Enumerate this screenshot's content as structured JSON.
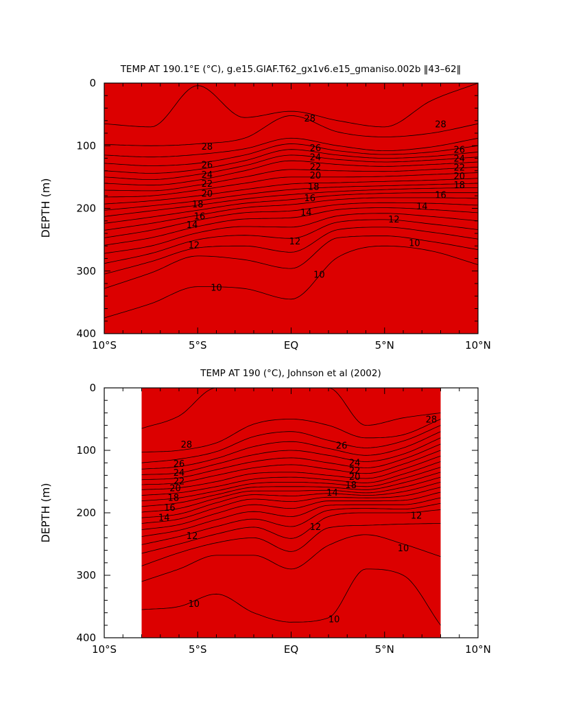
{
  "chart_data": [
    {
      "type": "contour",
      "title": "TEMP AT 190.1°E (°C), g.e15.GIAF.T62_gx1v6.e15_gmaniso.002b ‖43–62‖",
      "xlabel": "",
      "ylabel": "DEPTH (m)",
      "x_ticks": [
        "10°S",
        "5°S",
        "EQ",
        "5°N",
        "10°N"
      ],
      "y_ticks": [
        "0",
        "100",
        "200",
        "300",
        "400"
      ],
      "xlim": [
        -10,
        10
      ],
      "ylim": [
        400,
        0
      ],
      "y_reversed": true,
      "data_extent": [
        -10,
        10
      ],
      "x": [
        -10,
        -7.5,
        -5,
        -2.5,
        0,
        2.5,
        5,
        7.5,
        10
      ],
      "contour_levels": [
        29,
        28,
        27,
        26,
        25,
        24,
        23,
        22,
        21,
        20,
        19,
        18,
        17,
        16,
        15,
        14,
        13,
        12,
        11,
        10,
        9
      ],
      "isotherm_depths": {
        "29": [
          65,
          70,
          4,
          55,
          45,
          60,
          70,
          28,
          0
        ],
        "28": [
          98,
          100,
          97,
          88,
          52,
          78,
          86,
          80,
          65
        ],
        "27": [
          115,
          118,
          114,
          105,
          88,
          100,
          108,
          102,
          88
        ],
        "26": [
          128,
          132,
          128,
          115,
          97,
          108,
          114,
          110,
          100
        ],
        "25": [
          140,
          144,
          138,
          124,
          106,
          115,
          120,
          117,
          110
        ],
        "24": [
          150,
          154,
          146,
          132,
          115,
          122,
          126,
          123,
          118
        ],
        "23": [
          160,
          163,
          155,
          140,
          124,
          130,
          133,
          130,
          126
        ],
        "22": [
          171,
          172,
          163,
          150,
          138,
          140,
          141,
          138,
          134
        ],
        "21": [
          182,
          180,
          171,
          160,
          150,
          150,
          149,
          146,
          143
        ],
        "20": [
          193,
          188,
          180,
          170,
          161,
          159,
          157,
          155,
          152
        ],
        "19": [
          203,
          196,
          188,
          178,
          170,
          166,
          164,
          162,
          160
        ],
        "18": [
          213,
          204,
          195,
          185,
          178,
          173,
          170,
          168,
          167
        ],
        "17": [
          224,
          214,
          203,
          192,
          186,
          179,
          176,
          175,
          175
        ],
        "16": [
          235,
          224,
          211,
          199,
          194,
          186,
          183,
          183,
          184
        ],
        "15": [
          247,
          235,
          219,
          207,
          204,
          194,
          191,
          192,
          195
        ],
        "14": [
          259,
          247,
          229,
          217,
          215,
          202,
          199,
          202,
          207
        ],
        "13": [
          272,
          260,
          239,
          229,
          230,
          212,
          208,
          213,
          220
        ],
        "12": [
          288,
          272,
          250,
          243,
          248,
          222,
          218,
          225,
          234
        ],
        "11": [
          305,
          285,
          263,
          260,
          270,
          234,
          230,
          238,
          249
        ],
        "10": [
          328,
          303,
          276,
          282,
          296,
          247,
          244,
          253,
          266
        ],
        "9": [
          375,
          352,
          325,
          328,
          345,
          278,
          260,
          268,
          290
        ]
      },
      "labels": [
        {
          "text": "28",
          "x": 1.0,
          "y": 56
        },
        {
          "text": "28",
          "x": 8.0,
          "y": 65
        },
        {
          "text": "28",
          "x": -4.5,
          "y": 101
        },
        {
          "text": "26",
          "x": 1.3,
          "y": 103
        },
        {
          "text": "26",
          "x": 9.0,
          "y": 106
        },
        {
          "text": "26",
          "x": -4.5,
          "y": 130
        },
        {
          "text": "24",
          "x": 1.3,
          "y": 118
        },
        {
          "text": "24",
          "x": 9.0,
          "y": 120
        },
        {
          "text": "24",
          "x": -4.5,
          "y": 146
        },
        {
          "text": "22",
          "x": 1.3,
          "y": 133
        },
        {
          "text": "22",
          "x": 9.0,
          "y": 134
        },
        {
          "text": "22",
          "x": -4.5,
          "y": 160
        },
        {
          "text": "20",
          "x": 1.3,
          "y": 147
        },
        {
          "text": "20",
          "x": 9.0,
          "y": 148
        },
        {
          "text": "20",
          "x": -4.5,
          "y": 176
        },
        {
          "text": "18",
          "x": 1.2,
          "y": 165
        },
        {
          "text": "18",
          "x": 9.0,
          "y": 162
        },
        {
          "text": "18",
          "x": -5.0,
          "y": 193
        },
        {
          "text": "16",
          "x": 1.0,
          "y": 183
        },
        {
          "text": "16",
          "x": 8.0,
          "y": 178
        },
        {
          "text": "16",
          "x": -4.9,
          "y": 212
        },
        {
          "text": "14",
          "x": 0.8,
          "y": 206
        },
        {
          "text": "14",
          "x": 7.0,
          "y": 196
        },
        {
          "text": "14",
          "x": -5.3,
          "y": 226
        },
        {
          "text": "12",
          "x": 0.2,
          "y": 252
        },
        {
          "text": "12",
          "x": 5.5,
          "y": 217
        },
        {
          "text": "12",
          "x": -5.2,
          "y": 258
        },
        {
          "text": "10",
          "x": 1.5,
          "y": 305
        },
        {
          "text": "10",
          "x": 6.6,
          "y": 255
        },
        {
          "text": "10",
          "x": -4.0,
          "y": 326
        }
      ]
    },
    {
      "type": "contour",
      "title": "TEMP AT 190 (°C), Johnson et al (2002)",
      "xlabel": "",
      "ylabel": "DEPTH (m)",
      "x_ticks": [
        "10°S",
        "5°S",
        "EQ",
        "5°N",
        "10°N"
      ],
      "y_ticks": [
        "0",
        "100",
        "200",
        "300",
        "400"
      ],
      "xlim": [
        -10,
        10
      ],
      "ylim": [
        400,
        0
      ],
      "y_reversed": true,
      "data_extent": [
        -8,
        8
      ],
      "x": [
        -8,
        -6,
        -4,
        -2,
        0,
        2,
        4,
        6,
        8
      ],
      "contour_levels": [
        29,
        28,
        27,
        26,
        25,
        24,
        23,
        22,
        21,
        20,
        19,
        18,
        17,
        16,
        15,
        14,
        13,
        12,
        11,
        10,
        9
      ],
      "isotherm_depths": {
        "29": [
          65,
          45,
          0,
          0,
          0,
          0,
          60,
          48,
          40
        ],
        "28": [
          103,
          100,
          88,
          58,
          50,
          60,
          80,
          75,
          50
        ],
        "27": [
          120,
          114,
          102,
          78,
          70,
          84,
          96,
          85,
          60
        ],
        "26": [
          130,
          126,
          113,
          94,
          86,
          97,
          108,
          96,
          70
        ],
        "25": [
          139,
          136,
          122,
          107,
          100,
          108,
          118,
          106,
          80
        ],
        "24": [
          147,
          144,
          131,
          118,
          112,
          120,
          128,
          114,
          90
        ],
        "23": [
          155,
          152,
          140,
          128,
          123,
          130,
          137,
          122,
          100
        ],
        "22": [
          163,
          160,
          150,
          137,
          135,
          140,
          145,
          130,
          109
        ],
        "21": [
          172,
          168,
          158,
          146,
          143,
          147,
          152,
          138,
          118
        ],
        "20": [
          181,
          176,
          165,
          153,
          151,
          153,
          158,
          145,
          127
        ],
        "19": [
          190,
          184,
          171,
          159,
          158,
          159,
          163,
          152,
          135
        ],
        "18": [
          199,
          193,
          177,
          165,
          165,
          164,
          168,
          159,
          143
        ],
        "17": [
          208,
          202,
          184,
          171,
          173,
          169,
          172,
          166,
          151
        ],
        "16": [
          217,
          210,
          192,
          178,
          182,
          175,
          176,
          173,
          159
        ],
        "15": [
          227,
          219,
          201,
          187,
          193,
          181,
          181,
          180,
          167
        ],
        "14": [
          238,
          228,
          211,
          198,
          206,
          188,
          187,
          187,
          176
        ],
        "13": [
          251,
          238,
          222,
          210,
          222,
          196,
          193,
          194,
          185
        ],
        "12": [
          265,
          250,
          234,
          223,
          241,
          206,
          200,
          200,
          195
        ],
        "11": [
          285,
          264,
          248,
          240,
          262,
          224,
          220,
          218,
          217
        ],
        "10": [
          310,
          290,
          268,
          268,
          290,
          252,
          235,
          250,
          270
        ],
        "9": [
          355,
          350,
          330,
          360,
          375,
          368,
          290,
          300,
          380
        ]
      },
      "labels": [
        {
          "text": "28",
          "x": -5.6,
          "y": 90
        },
        {
          "text": "28",
          "x": 7.5,
          "y": 50
        },
        {
          "text": "26",
          "x": 2.7,
          "y": 92
        },
        {
          "text": "26",
          "x": -6.0,
          "y": 121
        },
        {
          "text": "24",
          "x": 3.4,
          "y": 119
        },
        {
          "text": "24",
          "x": -6.0,
          "y": 135
        },
        {
          "text": "22",
          "x": 3.4,
          "y": 132
        },
        {
          "text": "22",
          "x": -6.0,
          "y": 149
        },
        {
          "text": "20",
          "x": 3.4,
          "y": 142
        },
        {
          "text": "20",
          "x": -6.2,
          "y": 160
        },
        {
          "text": "18",
          "x": 3.2,
          "y": 155
        },
        {
          "text": "18",
          "x": -6.3,
          "y": 175
        },
        {
          "text": "16",
          "x": -6.5,
          "y": 191
        },
        {
          "text": "14",
          "x": 2.2,
          "y": 167
        },
        {
          "text": "14",
          "x": -6.8,
          "y": 207
        },
        {
          "text": "12",
          "x": -5.3,
          "y": 236
        },
        {
          "text": "12",
          "x": 1.3,
          "y": 222
        },
        {
          "text": "12",
          "x": 6.7,
          "y": 204
        },
        {
          "text": "10",
          "x": -5.2,
          "y": 345
        },
        {
          "text": "10",
          "x": 2.3,
          "y": 370
        },
        {
          "text": "10",
          "x": 6.0,
          "y": 256
        }
      ]
    }
  ],
  "colors": {
    "bands": [
      "#0038f0",
      "#1468f0",
      "#1c8cf0",
      "#00b4f0",
      "#00d2f0",
      "#00e6e6",
      "#00f0c0",
      "#00e896",
      "#00dc50",
      "#20e600",
      "#a0f000",
      "#e6f000",
      "#fff000",
      "#ffd200",
      "#ffb428",
      "#ff9628",
      "#ff7814",
      "#ff5000",
      "#ff2800",
      "#ff0a00",
      "#dc0000",
      "#dc0000"
    ],
    "contour_line": "#000000",
    "axis": "#000000"
  }
}
